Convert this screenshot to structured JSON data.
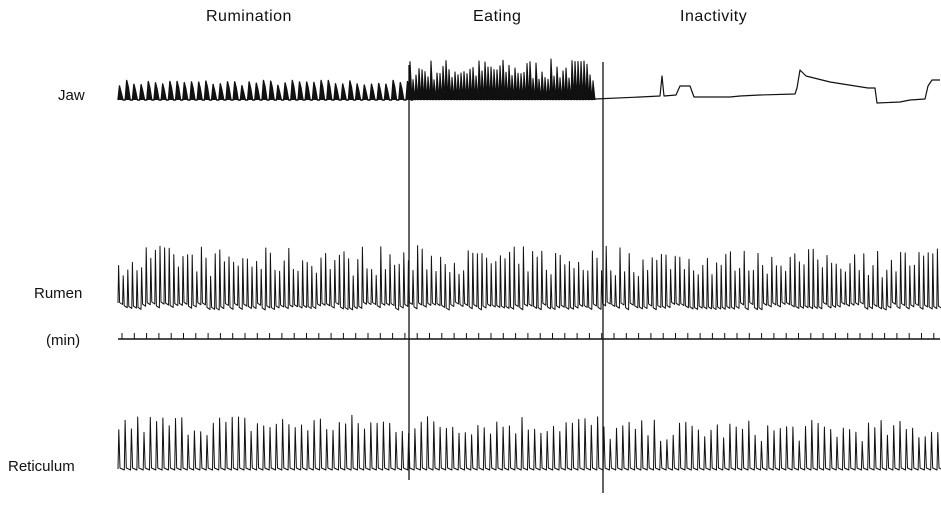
{
  "phases": [
    "Rumination",
    "Eating",
    "Inactivity"
  ],
  "traces": {
    "jaw": "Jaw",
    "rumen": "Rumen",
    "time": "(min)",
    "reticulum": "Reticulum"
  },
  "colors": {
    "ink": "#111111",
    "background": "#ffffff"
  }
}
